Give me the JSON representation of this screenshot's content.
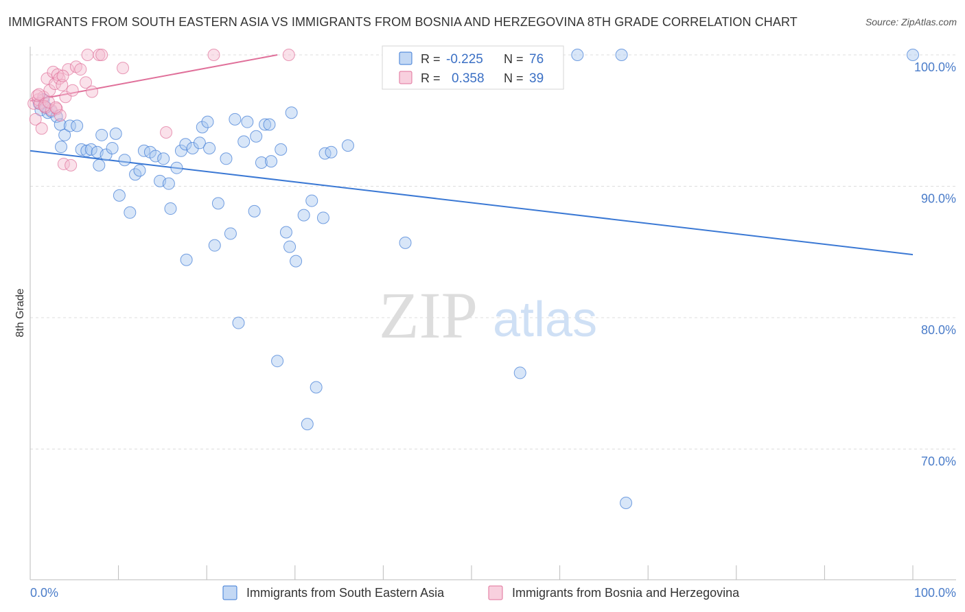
{
  "header": {
    "title": "IMMIGRANTS FROM SOUTH EASTERN ASIA VS IMMIGRANTS FROM BOSNIA AND HERZEGOVINA 8TH GRADE CORRELATION CHART",
    "source": "Source: ZipAtlas.com"
  },
  "watermark": {
    "zip": "ZIP",
    "atlas": "atlas"
  },
  "colors": {
    "blue": "#3a78d4",
    "blue_fill": "#a9c8f0",
    "pink": "#e0709a",
    "pink_fill": "#f5bcd0",
    "grid": "#dcdcdc",
    "axis_text": "#4a7cc9"
  },
  "stats_legend": {
    "r_label": "R =",
    "n_label": "N =",
    "rows": [
      {
        "series": "blue",
        "r": "-0.225",
        "n": "76"
      },
      {
        "series": "pink",
        "r": "0.358",
        "n": "39"
      }
    ]
  },
  "chart_data": {
    "type": "scatter",
    "title": "IMMIGRANTS FROM SOUTH EASTERN ASIA VS IMMIGRANTS FROM BOSNIA AND HERZEGOVINA 8TH GRADE CORRELATION CHART",
    "xlabel": "",
    "ylabel": "8th Grade",
    "xlim": [
      0,
      100
    ],
    "ylim": [
      60.5,
      101.5
    ],
    "x_tick_labels": [
      "0.0%",
      "100.0%"
    ],
    "y_ticks": [
      {
        "value": 100,
        "label": "100.0%"
      },
      {
        "value": 90,
        "label": "90.0%"
      },
      {
        "value": 80,
        "label": "80.0%"
      },
      {
        "value": 70,
        "label": "70.0%"
      }
    ],
    "series": [
      {
        "name": "Immigrants from South Eastern Asia",
        "color": "blue",
        "r": -0.225,
        "n": 76,
        "trend": {
          "x0": 0,
          "y0": 92.7,
          "x1": 100,
          "y1": 84.8
        },
        "points": [
          [
            1.0,
            96.3
          ],
          [
            1.2,
            95.8
          ],
          [
            1.5,
            96.6
          ],
          [
            1.8,
            96.0
          ],
          [
            2.0,
            95.6
          ],
          [
            2.4,
            95.7
          ],
          [
            3.0,
            95.3
          ],
          [
            3.4,
            94.7
          ],
          [
            3.5,
            93.0
          ],
          [
            3.9,
            93.9
          ],
          [
            4.5,
            94.6
          ],
          [
            5.3,
            94.6
          ],
          [
            5.8,
            92.8
          ],
          [
            6.4,
            92.7
          ],
          [
            6.9,
            92.8
          ],
          [
            7.6,
            92.6
          ],
          [
            7.8,
            91.6
          ],
          [
            8.1,
            93.9
          ],
          [
            8.6,
            92.4
          ],
          [
            9.3,
            92.9
          ],
          [
            9.7,
            94.0
          ],
          [
            10.1,
            89.3
          ],
          [
            10.7,
            92.0
          ],
          [
            11.3,
            88.0
          ],
          [
            11.9,
            90.9
          ],
          [
            12.4,
            91.2
          ],
          [
            12.9,
            92.7
          ],
          [
            13.6,
            92.6
          ],
          [
            14.2,
            92.3
          ],
          [
            14.7,
            90.4
          ],
          [
            15.1,
            92.1
          ],
          [
            15.7,
            90.2
          ],
          [
            15.9,
            88.3
          ],
          [
            16.6,
            91.4
          ],
          [
            17.1,
            92.7
          ],
          [
            17.6,
            93.2
          ],
          [
            17.7,
            84.4
          ],
          [
            18.4,
            92.9
          ],
          [
            19.2,
            93.3
          ],
          [
            19.5,
            94.5
          ],
          [
            20.1,
            94.9
          ],
          [
            20.3,
            92.9
          ],
          [
            20.9,
            85.5
          ],
          [
            21.3,
            88.7
          ],
          [
            22.2,
            92.1
          ],
          [
            22.7,
            86.4
          ],
          [
            23.2,
            95.1
          ],
          [
            23.6,
            79.6
          ],
          [
            24.2,
            93.4
          ],
          [
            24.6,
            94.9
          ],
          [
            25.4,
            88.1
          ],
          [
            25.6,
            93.8
          ],
          [
            26.2,
            91.8
          ],
          [
            26.6,
            94.7
          ],
          [
            27.1,
            94.7
          ],
          [
            27.3,
            91.9
          ],
          [
            28.0,
            76.7
          ],
          [
            28.4,
            92.8
          ],
          [
            29.0,
            86.5
          ],
          [
            29.4,
            85.4
          ],
          [
            29.6,
            95.6
          ],
          [
            30.1,
            84.3
          ],
          [
            31.0,
            87.8
          ],
          [
            31.4,
            71.9
          ],
          [
            31.9,
            88.9
          ],
          [
            32.4,
            74.7
          ],
          [
            33.2,
            87.6
          ],
          [
            33.4,
            92.5
          ],
          [
            34.1,
            92.6
          ],
          [
            36.0,
            93.1
          ],
          [
            42.5,
            85.7
          ],
          [
            55.5,
            75.8
          ],
          [
            62.0,
            100.0
          ],
          [
            67.0,
            100.0
          ],
          [
            67.5,
            65.9
          ],
          [
            100.0,
            100.0
          ]
        ]
      },
      {
        "name": "Immigrants from Bosnia and Herzegovina",
        "color": "pink",
        "r": 0.358,
        "n": 39,
        "trend": {
          "x0": 0,
          "y0": 96.5,
          "x1": 28,
          "y1": 100.0
        },
        "points": [
          [
            0.4,
            96.3
          ],
          [
            0.6,
            95.1
          ],
          [
            0.9,
            96.6
          ],
          [
            1.1,
            96.3
          ],
          [
            1.3,
            94.4
          ],
          [
            1.5,
            96.8
          ],
          [
            1.7,
            96.0
          ],
          [
            1.9,
            98.2
          ],
          [
            2.2,
            97.3
          ],
          [
            2.4,
            95.8
          ],
          [
            2.6,
            98.7
          ],
          [
            2.8,
            97.8
          ],
          [
            3.0,
            95.9
          ],
          [
            3.1,
            98.5
          ],
          [
            3.3,
            98.2
          ],
          [
            3.4,
            95.4
          ],
          [
            3.6,
            97.7
          ],
          [
            3.8,
            91.7
          ],
          [
            4.0,
            96.8
          ],
          [
            4.3,
            98.9
          ],
          [
            4.6,
            91.6
          ],
          [
            4.8,
            97.3
          ],
          [
            5.2,
            99.1
          ],
          [
            5.7,
            98.9
          ],
          [
            6.3,
            97.9
          ],
          [
            6.5,
            100.0
          ],
          [
            7.0,
            97.2
          ],
          [
            7.8,
            100.0
          ],
          [
            8.1,
            100.0
          ],
          [
            10.5,
            99.0
          ],
          [
            15.4,
            94.1
          ],
          [
            20.8,
            100.0
          ],
          [
            29.3,
            100.0
          ],
          [
            0.8,
            96.9
          ],
          [
            1.6,
            96.1
          ],
          [
            2.1,
            96.4
          ],
          [
            2.9,
            96.0
          ],
          [
            3.7,
            98.4
          ],
          [
            1.0,
            97.0
          ]
        ]
      }
    ],
    "legend": {
      "position": "bottom-center",
      "entries": [
        "Immigrants from South Eastern Asia",
        "Immigrants from Bosnia and Herzegovina"
      ]
    }
  }
}
